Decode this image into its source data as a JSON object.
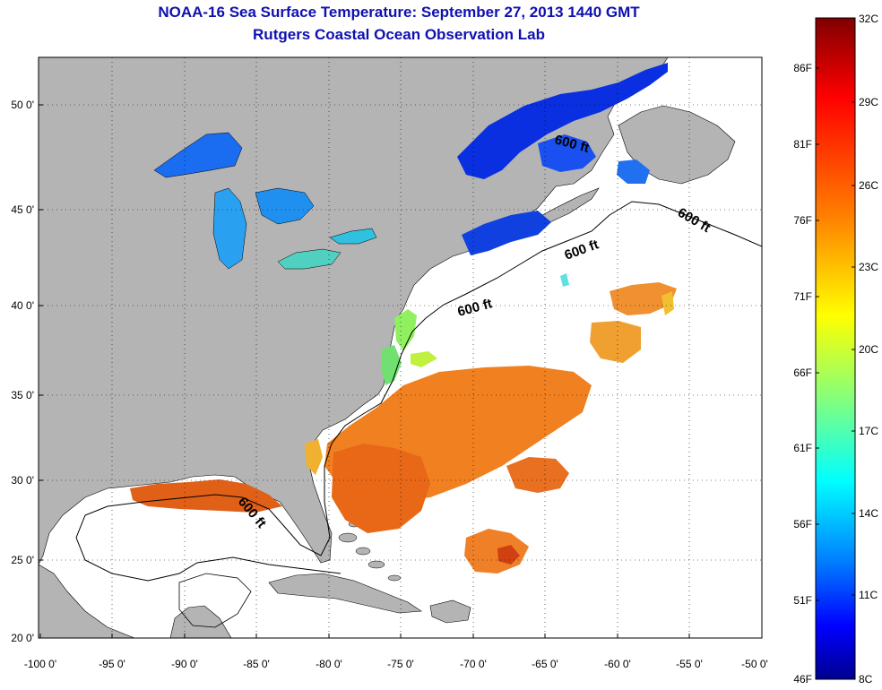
{
  "title": "NOAA-16 Sea Surface Temperature:  September 27, 2013 1440 GMT",
  "subtitle": "Rutgers Coastal Ocean Observation Lab",
  "lon_ticks": [
    "-100 0'",
    "-95 0'",
    "-90 0'",
    "-85 0'",
    "-80 0'",
    "-75 0'",
    "-70 0'",
    "-65 0'",
    "-60 0'",
    "-55 0'",
    "-50 0'"
  ],
  "lat_ticks": [
    "50 0'",
    "45 0'",
    "40 0'",
    "35 0'",
    "30 0'",
    "25 0'",
    "20 0'"
  ],
  "contour_label": "600 ft",
  "colorbar": {
    "celsius": [
      "32C",
      "29C",
      "26C",
      "23C",
      "20C",
      "17C",
      "14C",
      "11C",
      "8C"
    ],
    "fahrenheit": [
      "86F",
      "81F",
      "76F",
      "71F",
      "66F",
      "61F",
      "56F",
      "51F",
      "46F"
    ]
  },
  "colors": {
    "land": "#b4b4b4",
    "title": "#1010b0",
    "colormap": [
      "#7f0000",
      "#ff0000",
      "#ff8000",
      "#ffff00",
      "#80ff80",
      "#00ffff",
      "#0080ff",
      "#0000ff",
      "#00008f"
    ]
  }
}
